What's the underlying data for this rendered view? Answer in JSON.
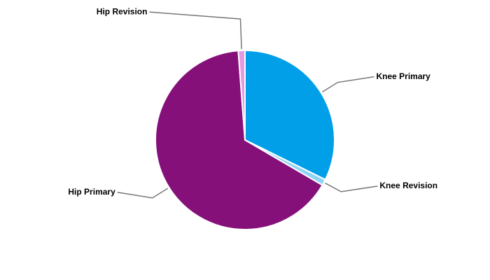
{
  "chart_data": {
    "type": "pie",
    "categories": [
      "Knee Primary",
      "Knee Revision",
      "Hip Primary",
      "Hip Revision"
    ],
    "values": [
      32.3,
      1.1,
      65.4,
      1.2
    ],
    "colors": [
      "#009fe8",
      "#8fd3f5",
      "#861079",
      "#e49ade"
    ]
  }
}
